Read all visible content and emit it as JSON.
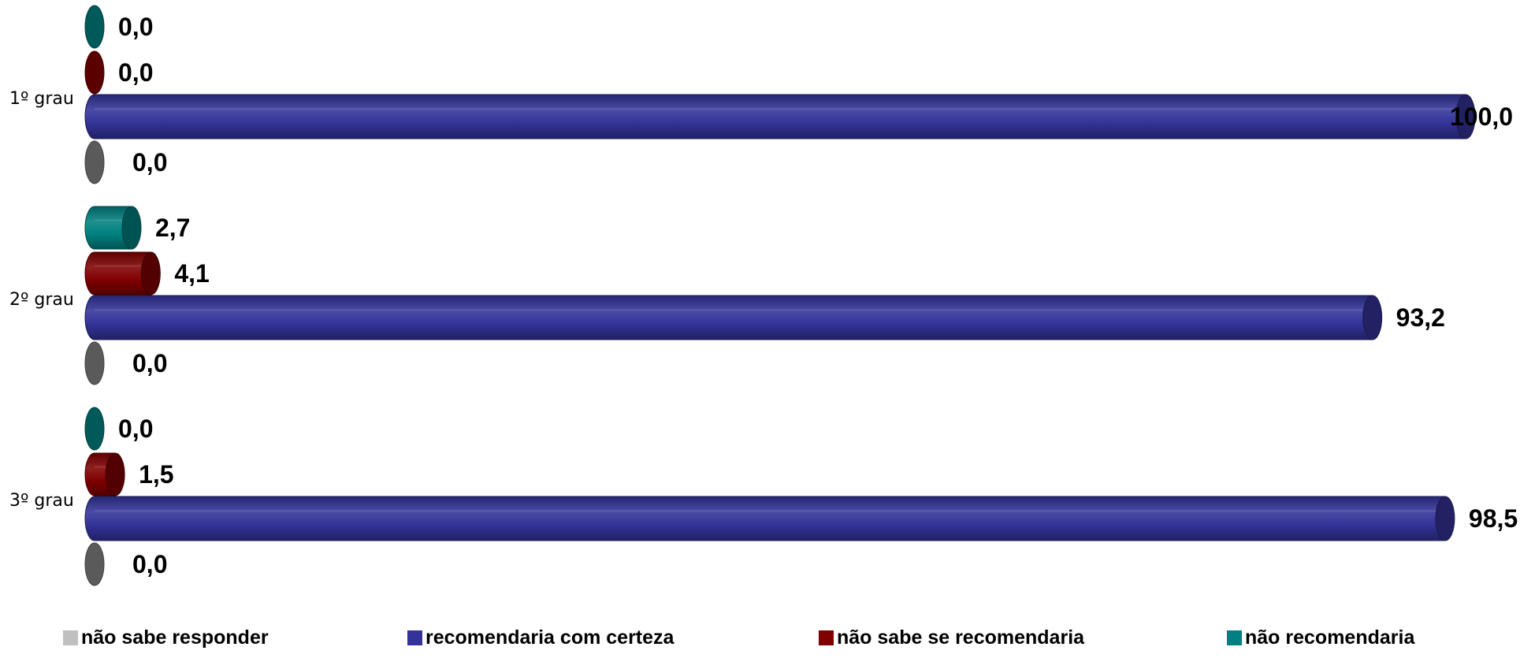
{
  "chart_data": {
    "type": "bar",
    "orientation": "horizontal",
    "style": "3d-cylinder",
    "categories": [
      "1º grau",
      "2º grau",
      "3º grau"
    ],
    "series": [
      {
        "name": "não recomendaria",
        "color": "#008080",
        "values": [
          0.0,
          2.7,
          0.0
        ],
        "labels": [
          "0,0",
          "2,7",
          "0,0"
        ]
      },
      {
        "name": "não sabe se recomendaria",
        "color": "#800000",
        "values": [
          0.0,
          4.1,
          1.5
        ],
        "labels": [
          "0,0",
          "4,1",
          "1,5"
        ]
      },
      {
        "name": "recomendaria com certeza",
        "color": "#333399",
        "values": [
          100.0,
          93.2,
          98.5
        ],
        "labels": [
          "100,0",
          "93,2",
          "98,5"
        ]
      },
      {
        "name": "não sabe responder",
        "color": "#808080",
        "values": [
          0.0,
          0.0,
          0.0
        ],
        "labels": [
          "0,0",
          "0,0",
          "0,0"
        ]
      }
    ],
    "xlim": [
      0,
      100
    ],
    "grid": false,
    "legend_position": "bottom",
    "legend_order": [
      "não sabe responder",
      "recomendaria com certeza",
      "não sabe se recomendaria",
      "não recomendaria"
    ]
  }
}
